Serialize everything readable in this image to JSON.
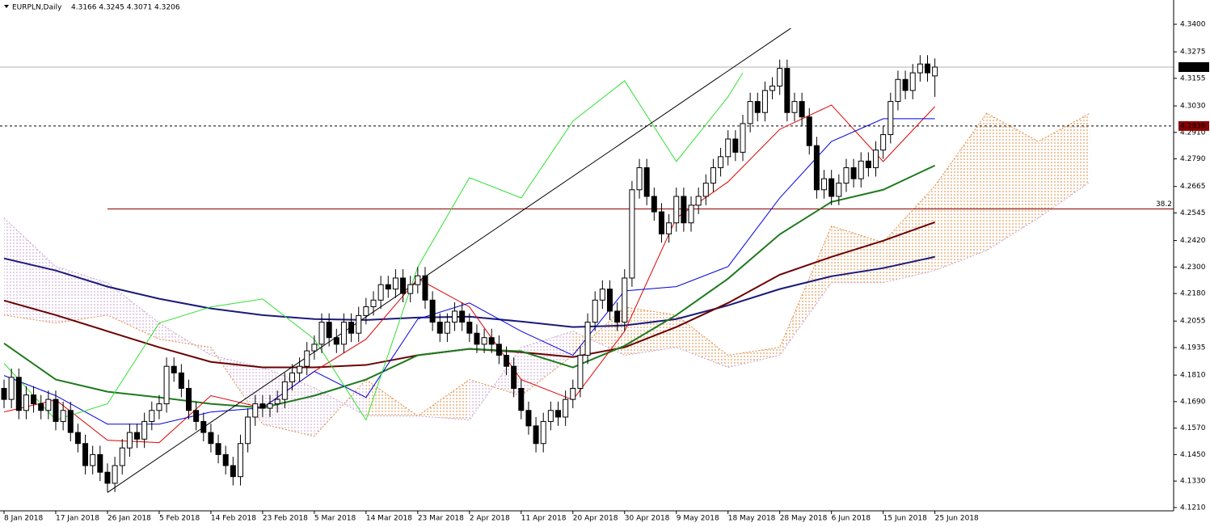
{
  "chart_data": {
    "type": "candlestick",
    "symbol": "EURPLN,Daily",
    "ohlc_label": "4.3166 4.3245 4.3071 4.3206",
    "ylim": [
      4.1195,
      4.351
    ],
    "yticks": [
      {
        "value": 4.34,
        "label": "4.3400"
      },
      {
        "value": 4.3275,
        "label": "4.3275"
      },
      {
        "value": 4.3155,
        "label": "4.3155"
      },
      {
        "value": 4.303,
        "label": "4.3030"
      },
      {
        "value": 4.291,
        "label": "4.2910"
      },
      {
        "value": 4.279,
        "label": "4.2790"
      },
      {
        "value": 4.2665,
        "label": "4.2665"
      },
      {
        "value": 4.2545,
        "label": "4.2545"
      },
      {
        "value": 4.242,
        "label": "4.2420"
      },
      {
        "value": 4.23,
        "label": "4.2300"
      },
      {
        "value": 4.218,
        "label": "4.2180"
      },
      {
        "value": 4.2055,
        "label": "4.2055"
      },
      {
        "value": 4.1935,
        "label": "4.1935"
      },
      {
        "value": 4.181,
        "label": "4.1810"
      },
      {
        "value": 4.169,
        "label": "4.1690"
      },
      {
        "value": 4.157,
        "label": "4.1570"
      },
      {
        "value": 4.145,
        "label": "4.1450"
      },
      {
        "value": 4.133,
        "label": "4.1330"
      },
      {
        "value": 4.121,
        "label": "4.1210"
      }
    ],
    "categories": [
      "8 Jan 2018",
      null,
      null,
      null,
      null,
      null,
      null,
      "17 Jan 2018",
      null,
      null,
      null,
      null,
      null,
      null,
      "26 Jan 2018",
      null,
      null,
      null,
      null,
      null,
      null,
      "5 Feb 2018",
      null,
      null,
      null,
      null,
      null,
      null,
      "14 Feb 2018",
      null,
      null,
      null,
      null,
      null,
      null,
      "23 Feb 2018",
      null,
      null,
      null,
      null,
      null,
      null,
      "5 Mar 2018",
      null,
      null,
      null,
      null,
      null,
      null,
      "14 Mar 2018",
      null,
      null,
      null,
      null,
      null,
      null,
      "23 Mar 2018",
      null,
      null,
      null,
      null,
      null,
      null,
      "2 Apr 2018",
      null,
      null,
      null,
      null,
      null,
      null,
      "11 Apr 2018",
      null,
      null,
      null,
      null,
      null,
      null,
      "20 Apr 2018",
      null,
      null,
      null,
      null,
      null,
      null,
      "30 Apr 2018",
      null,
      null,
      null,
      null,
      null,
      null,
      "9 May 2018",
      null,
      null,
      null,
      null,
      null,
      null,
      "18 May 2018",
      null,
      null,
      null,
      null,
      null,
      null,
      "28 May 2018",
      null,
      null,
      null,
      null,
      null,
      null,
      "6 Jun 2018",
      null,
      null,
      null,
      null,
      null,
      null,
      "15 Jun 2018",
      null,
      null,
      null,
      null,
      null,
      null,
      "25 Jun 2018"
    ],
    "open": [
      4.175,
      4.17,
      4.18,
      4.165,
      4.172,
      4.168,
      4.165,
      4.17,
      4.16,
      4.165,
      4.155,
      4.15,
      4.14,
      4.145,
      4.137,
      4.132,
      4.14,
      4.148,
      4.155,
      4.152,
      4.16,
      4.165,
      4.168,
      4.185,
      4.182,
      4.175,
      4.165,
      4.16,
      4.155,
      4.15,
      4.145,
      4.14,
      4.135,
      4.15,
      4.162,
      4.168,
      4.166,
      4.168,
      4.17,
      4.178,
      4.182,
      4.185,
      4.192,
      4.195,
      4.205,
      4.198,
      4.195,
      4.205,
      4.2,
      4.208,
      4.212,
      4.215,
      4.222,
      4.22,
      4.225,
      4.218,
      4.222,
      4.226,
      4.215,
      4.205,
      4.2,
      4.205,
      4.21,
      4.205,
      4.2,
      4.195,
      4.198,
      4.195,
      4.19,
      4.185,
      4.175,
      4.165,
      4.158,
      4.15,
      4.16,
      4.165,
      4.162,
      4.17,
      4.175,
      4.19,
      4.205,
      4.215,
      4.22,
      4.21,
      4.205,
      4.225,
      4.265,
      4.275,
      4.262,
      4.255,
      4.245,
      4.25,
      4.262,
      4.25,
      4.258,
      4.262,
      4.268,
      4.275,
      4.28,
      4.288,
      4.282,
      4.295,
      4.305,
      4.3,
      4.31,
      4.312,
      4.32,
      4.3,
      4.305,
      4.298,
      4.285,
      4.265,
      4.27,
      4.262,
      4.268,
      4.275,
      4.27,
      4.278,
      4.275,
      4.283,
      4.29,
      4.305,
      4.315,
      4.31,
      4.318,
      4.322,
      4.3166
    ],
    "high": [
      4.179,
      4.184,
      4.184,
      4.176,
      4.176,
      4.172,
      4.174,
      4.174,
      4.169,
      4.169,
      4.159,
      4.154,
      4.149,
      4.149,
      4.141,
      4.144,
      4.152,
      4.159,
      4.159,
      4.164,
      4.169,
      4.172,
      4.189,
      4.189,
      4.186,
      4.179,
      4.169,
      4.164,
      4.159,
      4.154,
      4.149,
      4.144,
      4.154,
      4.166,
      4.172,
      4.172,
      4.172,
      4.174,
      4.182,
      4.186,
      4.189,
      4.196,
      4.199,
      4.209,
      4.209,
      4.202,
      4.209,
      4.209,
      4.212,
      4.216,
      4.219,
      4.226,
      4.226,
      4.229,
      4.229,
      4.226,
      4.23,
      4.23,
      4.219,
      4.209,
      4.209,
      4.214,
      4.214,
      4.209,
      4.204,
      4.202,
      4.202,
      4.199,
      4.194,
      4.189,
      4.179,
      4.169,
      4.162,
      4.164,
      4.169,
      4.169,
      4.174,
      4.179,
      4.194,
      4.209,
      4.219,
      4.224,
      4.224,
      4.214,
      4.229,
      4.269,
      4.279,
      4.279,
      4.266,
      4.259,
      4.254,
      4.266,
      4.266,
      4.262,
      4.266,
      4.272,
      4.279,
      4.284,
      4.292,
      4.292,
      4.299,
      4.309,
      4.309,
      4.314,
      4.316,
      4.324,
      4.324,
      4.309,
      4.309,
      4.302,
      4.289,
      4.274,
      4.274,
      4.272,
      4.279,
      4.279,
      4.282,
      4.282,
      4.287,
      4.294,
      4.309,
      4.319,
      4.319,
      4.322,
      4.326,
      4.326,
      4.3245
    ],
    "low": [
      4.166,
      4.166,
      4.161,
      4.161,
      4.164,
      4.161,
      4.161,
      4.156,
      4.156,
      4.151,
      4.146,
      4.136,
      4.136,
      4.133,
      4.128,
      4.128,
      4.136,
      4.144,
      4.148,
      4.148,
      4.156,
      4.161,
      4.164,
      4.178,
      4.171,
      4.161,
      4.156,
      4.151,
      4.146,
      4.141,
      4.136,
      4.131,
      4.131,
      4.146,
      4.158,
      4.162,
      4.162,
      4.164,
      4.166,
      4.174,
      4.178,
      4.181,
      4.188,
      4.191,
      4.194,
      4.191,
      4.191,
      4.196,
      4.196,
      4.204,
      4.208,
      4.211,
      4.216,
      4.216,
      4.214,
      4.214,
      4.218,
      4.211,
      4.201,
      4.196,
      4.196,
      4.201,
      4.201,
      4.196,
      4.191,
      4.191,
      4.191,
      4.186,
      4.181,
      4.171,
      4.161,
      4.154,
      4.146,
      4.146,
      4.156,
      4.158,
      4.158,
      4.166,
      4.171,
      4.186,
      4.201,
      4.211,
      4.206,
      4.201,
      4.201,
      4.221,
      4.261,
      4.258,
      4.251,
      4.241,
      4.241,
      4.246,
      4.246,
      4.246,
      4.254,
      4.258,
      4.264,
      4.271,
      4.276,
      4.278,
      4.278,
      4.291,
      4.296,
      4.296,
      4.306,
      4.308,
      4.296,
      4.296,
      4.294,
      4.281,
      4.261,
      4.261,
      4.258,
      4.258,
      4.264,
      4.266,
      4.266,
      4.271,
      4.271,
      4.279,
      4.286,
      4.301,
      4.306,
      4.306,
      4.314,
      4.314,
      4.3071
    ],
    "close": [
      4.17,
      4.18,
      4.165,
      4.172,
      4.168,
      4.165,
      4.17,
      4.16,
      4.165,
      4.155,
      4.15,
      4.14,
      4.145,
      4.137,
      4.132,
      4.14,
      4.148,
      4.155,
      4.152,
      4.16,
      4.165,
      4.168,
      4.185,
      4.182,
      4.175,
      4.165,
      4.16,
      4.155,
      4.15,
      4.145,
      4.14,
      4.135,
      4.15,
      4.162,
      4.168,
      4.166,
      4.168,
      4.17,
      4.178,
      4.182,
      4.185,
      4.192,
      4.195,
      4.205,
      4.198,
      4.195,
      4.205,
      4.2,
      4.208,
      4.212,
      4.215,
      4.222,
      4.22,
      4.225,
      4.218,
      4.222,
      4.226,
      4.215,
      4.205,
      4.2,
      4.205,
      4.21,
      4.205,
      4.2,
      4.195,
      4.198,
      4.195,
      4.19,
      4.185,
      4.175,
      4.165,
      4.158,
      4.15,
      4.16,
      4.165,
      4.162,
      4.17,
      4.175,
      4.19,
      4.205,
      4.215,
      4.22,
      4.21,
      4.205,
      4.225,
      4.265,
      4.275,
      4.262,
      4.255,
      4.245,
      4.25,
      4.262,
      4.25,
      4.258,
      4.262,
      4.268,
      4.275,
      4.28,
      4.288,
      4.282,
      4.295,
      4.305,
      4.3,
      4.31,
      4.312,
      4.32,
      4.3,
      4.305,
      4.298,
      4.285,
      4.265,
      4.27,
      4.262,
      4.268,
      4.275,
      4.27,
      4.278,
      4.275,
      4.283,
      4.29,
      4.305,
      4.315,
      4.31,
      4.318,
      4.322,
      4.318,
      4.3206
    ],
    "up_color": "#ffffff",
    "down_color": "#000000",
    "cloud": {
      "x": [
        0,
        7,
        14,
        21,
        28,
        35,
        42,
        49,
        56,
        63,
        70,
        77,
        84,
        91,
        98,
        105,
        112,
        119,
        126,
        133,
        140,
        147
      ],
      "span_a": [
        4.2082,
        4.2046,
        4.2082,
        4.1973,
        4.1936,
        4.1588,
        4.1533,
        4.179,
        4.1625,
        4.179,
        4.1717,
        4.19,
        4.2119,
        4.2082,
        4.19,
        4.1936,
        4.2485,
        4.2412,
        4.2668,
        4.2997,
        4.2869,
        4.2997
      ],
      "span_b": [
        4.2522,
        4.2302,
        4.2229,
        4.2046,
        4.19,
        4.1845,
        4.1753,
        4.1625,
        4.1625,
        4.1607,
        4.1936,
        4.2009,
        4.19,
        4.1936,
        4.1845,
        4.19,
        4.2229,
        4.2229,
        4.2284,
        4.2375,
        4.2522,
        4.2686
      ],
      "color_a": "#e08a3c",
      "color_b": "#c8a0d0"
    },
    "lines": [
      {
        "color": "#1a1a7a",
        "width": 2,
        "x": [
          0,
          7,
          14,
          21,
          28,
          35,
          42,
          49,
          56,
          63,
          70,
          77,
          84,
          91,
          98,
          105,
          112,
          119,
          126
        ],
        "values": [
          4.2339,
          4.2284,
          4.2211,
          4.2156,
          4.2112,
          4.2082,
          4.2064,
          4.206,
          4.2071,
          4.2075,
          4.2053,
          4.2028,
          4.2035,
          4.2064,
          4.2126,
          4.22,
          4.2258,
          4.2295,
          4.2346
        ]
      },
      {
        "color": "#6b0000",
        "width": 2,
        "x": [
          0,
          7,
          14,
          21,
          28,
          35,
          42,
          49,
          56,
          63,
          70,
          77,
          84,
          91,
          98,
          105,
          112,
          119,
          126
        ],
        "values": [
          4.2148,
          4.2082,
          4.2009,
          4.1936,
          4.187,
          4.1845,
          4.1845,
          4.1856,
          4.19,
          4.1929,
          4.1914,
          4.1892,
          4.1936,
          4.2028,
          4.2137,
          4.2265,
          4.2346,
          4.2419,
          4.2503
        ]
      },
      {
        "color": "#1e7a1e",
        "width": 2,
        "x": [
          0,
          7,
          14,
          21,
          28,
          35,
          42,
          49,
          56,
          63,
          70,
          77,
          84,
          91,
          98,
          105,
          112,
          119,
          126
        ],
        "values": [
          4.1954,
          4.179,
          4.1735,
          4.1709,
          4.168,
          4.1662,
          4.1717,
          4.179,
          4.19,
          4.1929,
          4.1918,
          4.1845,
          4.1943,
          4.2082,
          4.2247,
          4.2448,
          4.2595,
          4.265,
          4.276
        ]
      },
      {
        "color": "#e00000",
        "width": 1,
        "x": [
          0,
          7,
          14,
          21,
          28,
          35,
          42,
          49,
          56,
          63,
          70,
          77,
          84,
          91,
          98,
          105,
          112,
          119,
          126
        ],
        "values": [
          4.1643,
          4.1698,
          4.1515,
          4.1504,
          4.1717,
          4.1662,
          4.1827,
          4.1973,
          4.2247,
          4.2119,
          4.179,
          4.1698,
          4.2009,
          4.2522,
          4.2686,
          4.2924,
          4.3034,
          4.2778,
          4.3027
        ]
      },
      {
        "color": "#0000e0",
        "width": 1,
        "x": [
          0,
          7,
          14,
          21,
          28,
          35,
          42,
          49,
          56,
          63,
          70,
          77,
          84,
          91,
          98,
          105,
          112,
          119,
          126
        ],
        "values": [
          4.1808,
          4.1717,
          4.1588,
          4.1588,
          4.1643,
          4.1662,
          4.1827,
          4.1709,
          4.2064,
          4.2137,
          4.2009,
          4.19,
          4.2192,
          4.2211,
          4.2302,
          4.2613,
          4.2869,
          4.2972,
          4.2972
        ]
      },
      {
        "color": "#33e033",
        "width": 1,
        "x": [
          0,
          7,
          14,
          21,
          28,
          35,
          42,
          49,
          56,
          63,
          70,
          77,
          84,
          91,
          98,
          100
        ],
        "values": [
          4.1863,
          4.1607,
          4.168,
          4.2046,
          4.2119,
          4.2155,
          4.1973,
          4.1607,
          4.23,
          4.2705,
          4.2613,
          4.2961,
          4.3144,
          4.2778,
          4.3071,
          4.318
        ]
      },
      {
        "color": "#000000",
        "width": 1,
        "x": [
          14,
          106.5
        ],
        "values": [
          4.1278,
          4.3382
        ]
      }
    ],
    "fib_level": {
      "value": 4.2563,
      "label": "38.2",
      "start_x": 14,
      "color": "#8b0000"
    },
    "levels": [
      {
        "value": 4.3206,
        "color": "#b0b0b0",
        "dashed": false,
        "tag_color": "#000000"
      },
      {
        "value": 4.2939,
        "color": "#000000",
        "dashed": true,
        "tag_color": "#8b0000"
      }
    ]
  }
}
